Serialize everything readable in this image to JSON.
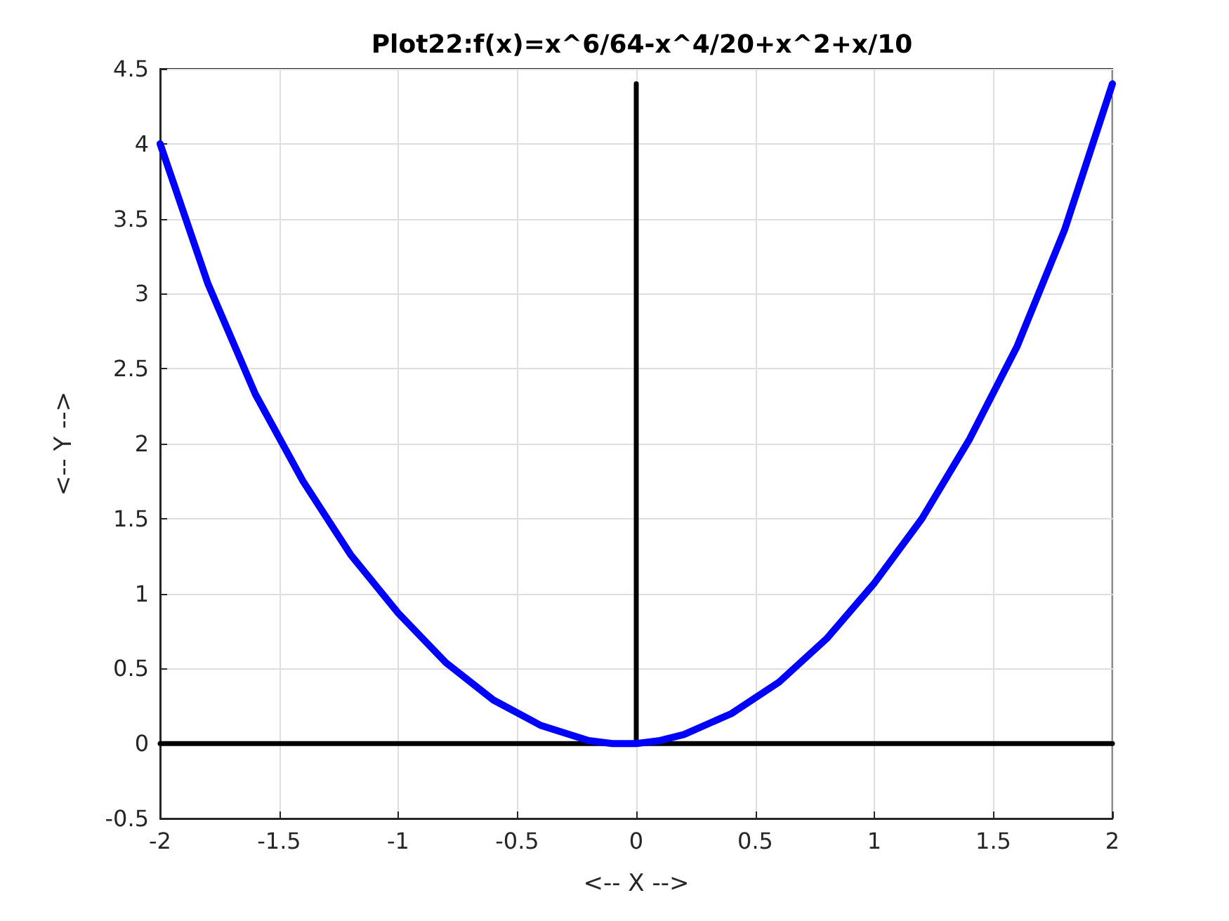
{
  "chart_data": {
    "type": "line",
    "title": "Plot22:f(x)=x^6/64-x^4/20+x^2+x/10",
    "xlabel": "<-- X -->",
    "ylabel": "<-- Y -->",
    "xlim": [
      -2,
      2
    ],
    "ylim": [
      -0.5,
      4.5
    ],
    "xticks": [
      -2,
      -1.5,
      -1,
      -0.5,
      0,
      0.5,
      1,
      1.5,
      2
    ],
    "yticks": [
      -0.5,
      0,
      0.5,
      1,
      1.5,
      2,
      2.5,
      3,
      3.5,
      4,
      4.5
    ],
    "grid": true,
    "marker": "none",
    "line_style": "solid",
    "series": [
      {
        "color": "#0000ff",
        "x": [
          -2,
          -1.8,
          -1.6,
          -1.4,
          -1.2,
          -1,
          -0.8,
          -0.6,
          -0.4,
          -0.2,
          -0.1,
          0,
          0.1,
          0.2,
          0.4,
          0.6,
          0.8,
          1,
          1.2,
          1.4,
          1.6,
          1.8,
          2
        ],
        "values": [
          4.0,
          3.07,
          2.33,
          1.75,
          1.26,
          0.87,
          0.54,
          0.29,
          0.12,
          0.02,
          0.0,
          0,
          0.02,
          0.06,
          0.2,
          0.41,
          0.7,
          1.07,
          1.5,
          2.03,
          2.65,
          3.43,
          4.4
        ]
      },
      {
        "color": "#000000",
        "x": [
          -2,
          2
        ],
        "values": [
          0,
          0
        ]
      },
      {
        "color": "#000000",
        "x": [
          0,
          0
        ],
        "values": [
          0,
          4.4
        ]
      }
    ]
  }
}
